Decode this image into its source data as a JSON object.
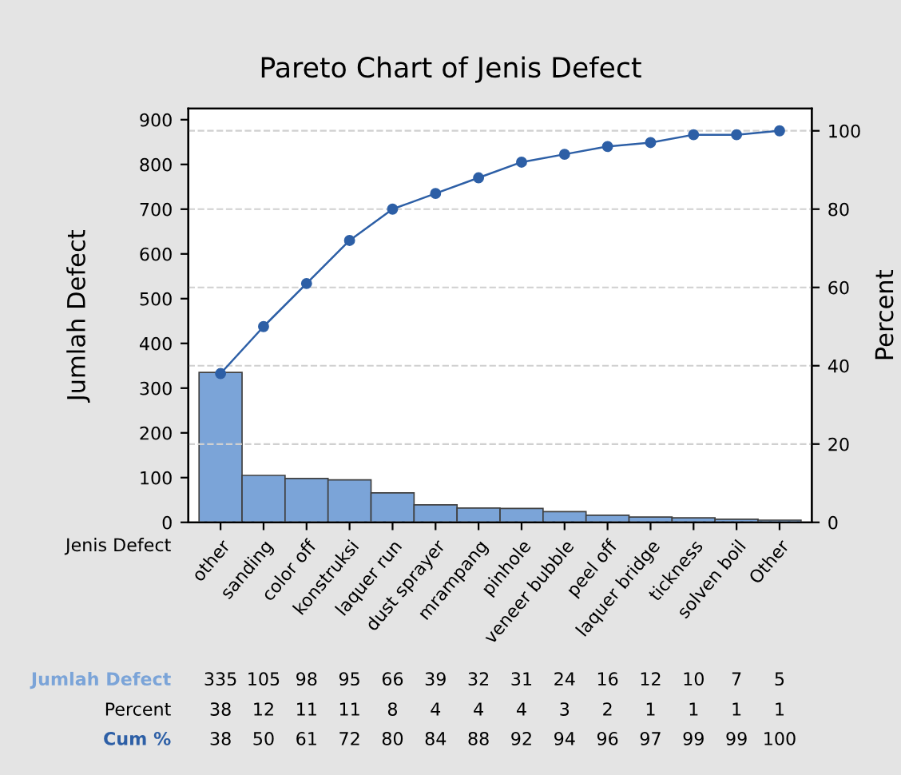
{
  "chart_data": {
    "type": "bar",
    "title": "Pareto Chart of Jenis Defect",
    "xlabel": "Jenis Defect",
    "ylabel": "Jumlah Defect",
    "y2label": "Percent",
    "categories": [
      "other",
      "sanding",
      "color off",
      "konstruksi",
      "laquer run",
      "dust sprayer",
      "mrampang",
      "pinhole",
      "veneer bubble",
      "peel off",
      "laquer bridge",
      "tickness",
      "solven boil",
      "Other"
    ],
    "series": [
      {
        "name": "Jumlah Defect",
        "color": "#7ba4d8",
        "values": [
          335,
          105,
          98,
          95,
          66,
          39,
          32,
          31,
          24,
          16,
          12,
          10,
          7,
          5
        ]
      },
      {
        "name": "Cum %",
        "type": "line",
        "axis": "y2",
        "color": "#2d5fa6",
        "values": [
          38,
          50,
          61,
          72,
          80,
          84,
          88,
          92,
          94,
          96,
          97,
          99,
          99,
          100
        ]
      }
    ],
    "ylim": [
      0,
      925
    ],
    "yticks": [
      0,
      100,
      200,
      300,
      400,
      500,
      600,
      700,
      800,
      900
    ],
    "y2lim": [
      0,
      105.7
    ],
    "y2ticks": [
      0,
      20,
      40,
      60,
      80,
      100
    ],
    "annotations": [
      "Percent",
      "38",
      "12",
      "11",
      "11",
      "8",
      "4",
      "4",
      "4",
      "3",
      "2",
      "1",
      "1",
      "1",
      "1"
    ],
    "grid": "y2",
    "marker": "circle",
    "line_style": "solid",
    "data_labels": true,
    "legend": false
  }
}
